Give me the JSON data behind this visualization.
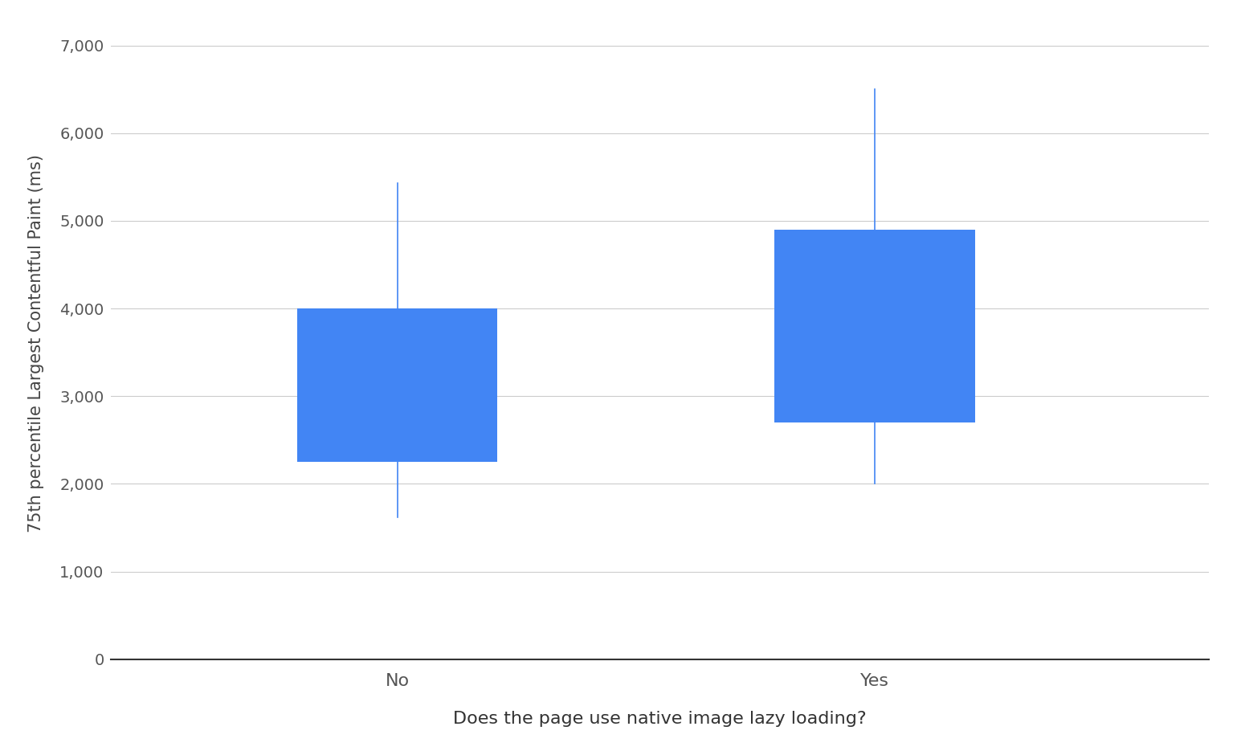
{
  "categories": [
    "No",
    "Yes"
  ],
  "boxes": [
    {
      "q1": 2250,
      "q3": 4000,
      "whislo": 1620,
      "whishi": 5430
    },
    {
      "q1": 2700,
      "q3": 4900,
      "whislo": 2000,
      "whishi": 6500
    }
  ],
  "box_color": "#4285F4",
  "whisker_color": "#4285F4",
  "ylabel": "75th percentile Largest Contentful Paint (ms)",
  "xlabel": "Does the page use native image lazy loading?",
  "ylim": [
    0,
    7200
  ],
  "yticks": [
    0,
    1000,
    2000,
    3000,
    4000,
    5000,
    6000,
    7000
  ],
  "ytick_labels": [
    "0",
    "1,000",
    "2,000",
    "3,000",
    "4,000",
    "5,000",
    "6,000",
    "7,000"
  ],
  "background_color": "#ffffff",
  "grid_color": "#cccccc",
  "label_fontsize": 15,
  "tick_fontsize": 14,
  "box_width": 0.42,
  "positions": [
    1,
    2
  ],
  "xlim": [
    0.4,
    2.7
  ]
}
